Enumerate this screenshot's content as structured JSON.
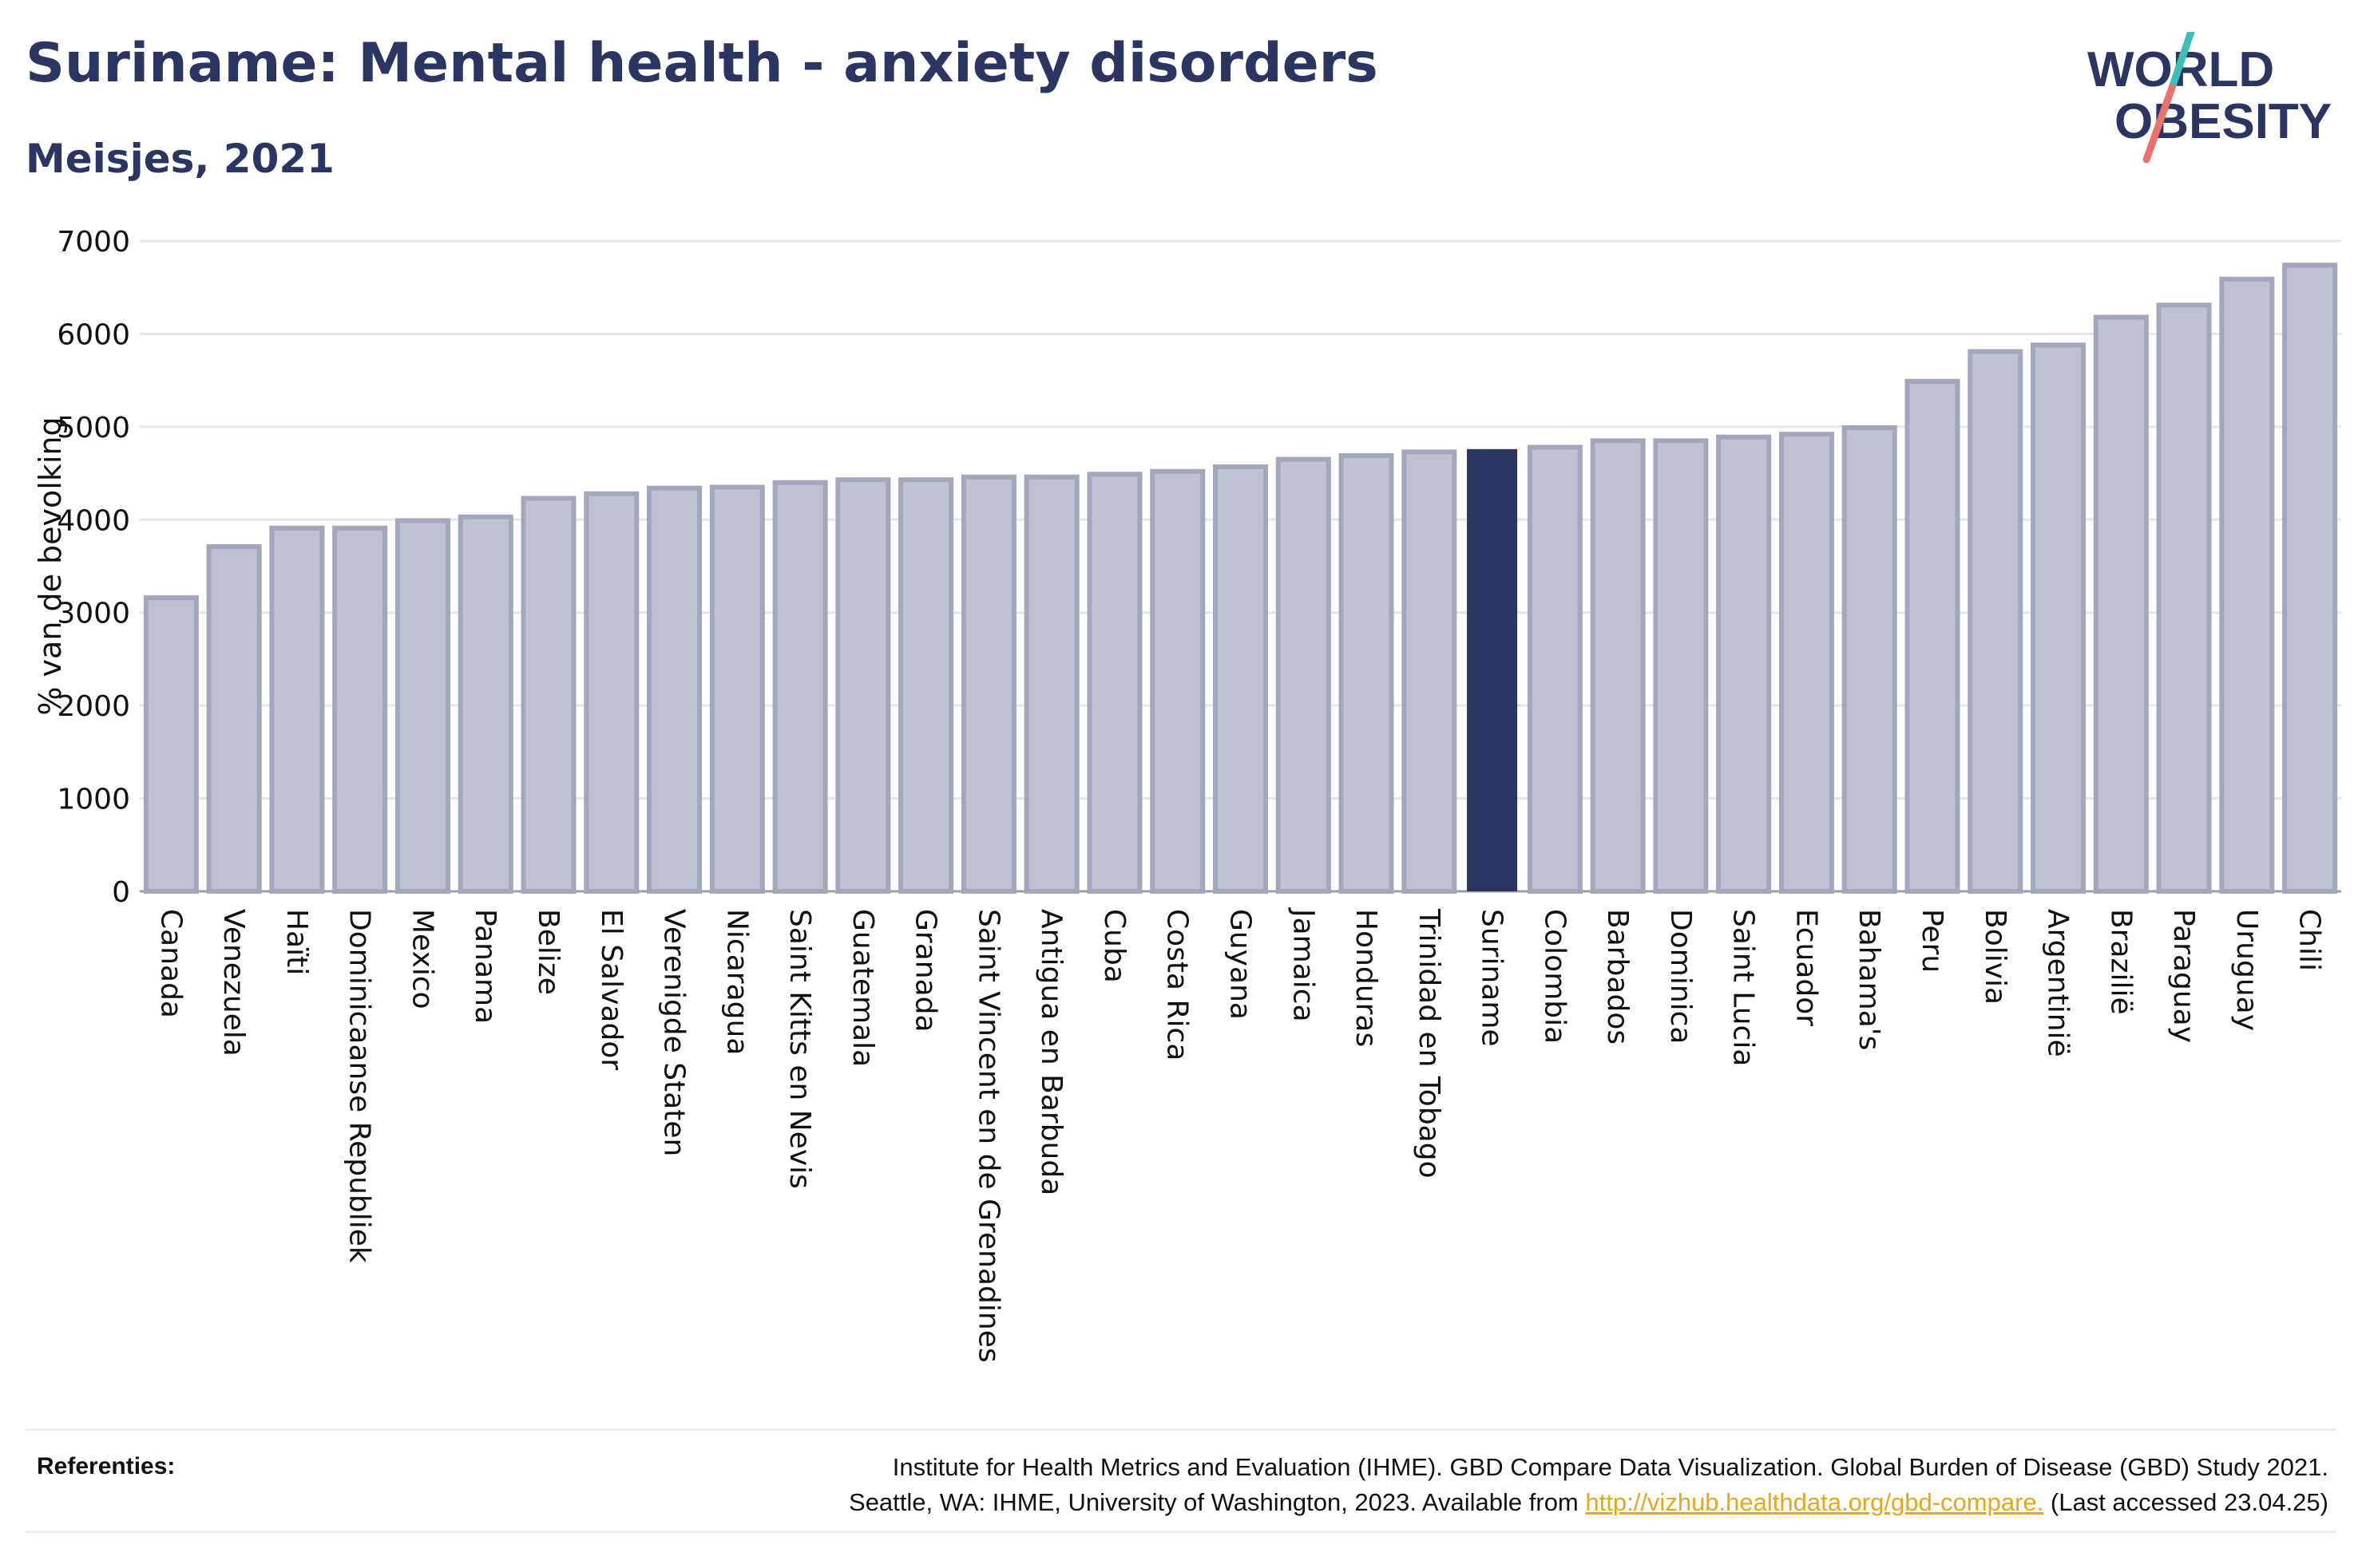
{
  "header": {
    "title": "Suriname: Mental health - anxiety disorders",
    "subtitle": "Meisjes, 2021"
  },
  "logo": {
    "line1": "WORLD",
    "line2": "OBESITY",
    "colors": {
      "text": "#2b3561",
      "accent_teal": "#3dbfb8",
      "accent_coral": "#e8736a"
    }
  },
  "colors": {
    "bar": "#bfc2d0",
    "bar_stroke": "#a3a7bb",
    "highlight": "#2b3561",
    "grid": "#e6e6ea",
    "axis_text": "#111111"
  },
  "chart_data": {
    "type": "bar",
    "ylabel": "% van de bevolking",
    "ylim": [
      0,
      7000
    ],
    "yticks": [
      0,
      1000,
      2000,
      3000,
      4000,
      5000,
      6000,
      7000
    ],
    "grid": true,
    "highlight": "Suriname",
    "categories": [
      "Canada",
      "Venezuela",
      "Haïti",
      "Dominicaanse Republiek",
      "Mexico",
      "Panama",
      "Belize",
      "El Salvador",
      "Verenigde Staten",
      "Nicaragua",
      "Saint Kitts en Nevis",
      "Guatemala",
      "Granada",
      "Saint Vincent en de Grenadines",
      "Antigua en Barbuda",
      "Cuba",
      "Costa Rica",
      "Guyana",
      "Jamaica",
      "Honduras",
      "Trinidad en Tobago",
      "Suriname",
      "Colombia",
      "Barbados",
      "Dominica",
      "Saint Lucia",
      "Ecuador",
      "Bahama's",
      "Peru",
      "Bolivia",
      "Argentinië",
      "Brazilië",
      "Paraguay",
      "Uruguay",
      "Chili"
    ],
    "values": [
      3160,
      3710,
      3910,
      3910,
      3990,
      4030,
      4230,
      4280,
      4340,
      4350,
      4400,
      4430,
      4430,
      4460,
      4460,
      4490,
      4520,
      4570,
      4650,
      4690,
      4730,
      4760,
      4780,
      4850,
      4850,
      4890,
      4920,
      4990,
      5490,
      5810,
      5880,
      6180,
      6310,
      6590,
      6740
    ]
  },
  "references": {
    "label": "Referenties:",
    "line1": "Institute for Health Metrics and Evaluation (IHME). GBD Compare Data Visualization. Global Burden of Disease (GBD) Study 2021.",
    "line2_before": "Seattle, WA: IHME, University of Washington, 2023. Available from",
    "link": "http://vizhub.healthdata.org/gbd-compare.",
    "line2_after": "(Last accessed 23.04.25)"
  }
}
